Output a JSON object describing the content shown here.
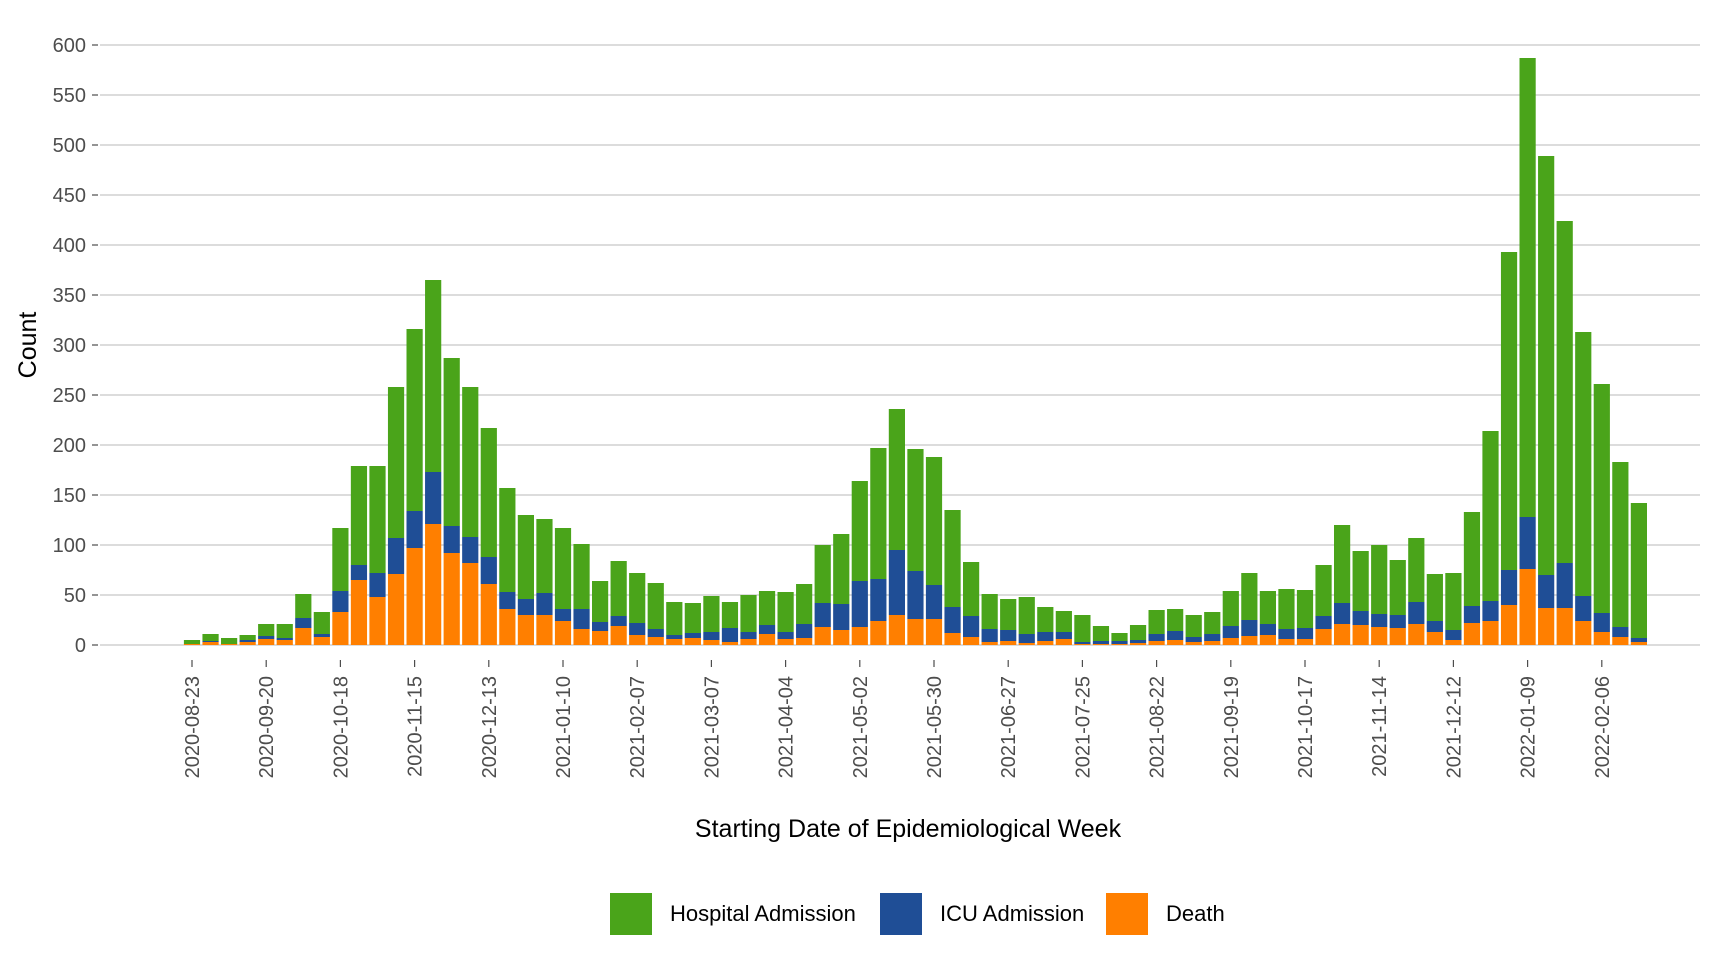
{
  "chart_data": {
    "type": "bar",
    "stacked": true,
    "xlabel": "Starting Date of Epidemiological Week",
    "ylabel": "Count",
    "ylim": [
      0,
      600
    ],
    "yticks": [
      0,
      50,
      100,
      150,
      200,
      250,
      300,
      350,
      400,
      450,
      500,
      550,
      600
    ],
    "grid": "horizontal",
    "legend_position": "bottom",
    "x": [
      "2020-08-23",
      "2020-08-30",
      "2020-09-06",
      "2020-09-13",
      "2020-09-20",
      "2020-09-27",
      "2020-10-04",
      "2020-10-11",
      "2020-10-18",
      "2020-10-25",
      "2020-11-01",
      "2020-11-08",
      "2020-11-15",
      "2020-11-22",
      "2020-11-29",
      "2020-12-06",
      "2020-12-13",
      "2020-12-20",
      "2020-12-27",
      "2021-01-03",
      "2021-01-10",
      "2021-01-17",
      "2021-01-24",
      "2021-01-31",
      "2021-02-07",
      "2021-02-14",
      "2021-02-21",
      "2021-02-28",
      "2021-03-07",
      "2021-03-14",
      "2021-03-21",
      "2021-03-28",
      "2021-04-04",
      "2021-04-11",
      "2021-04-18",
      "2021-04-25",
      "2021-05-02",
      "2021-05-09",
      "2021-05-16",
      "2021-05-23",
      "2021-05-30",
      "2021-06-06",
      "2021-06-13",
      "2021-06-20",
      "2021-06-27",
      "2021-07-04",
      "2021-07-11",
      "2021-07-18",
      "2021-07-25",
      "2021-08-01",
      "2021-08-08",
      "2021-08-15",
      "2021-08-22",
      "2021-08-29",
      "2021-09-05",
      "2021-09-12",
      "2021-09-19",
      "2021-09-26",
      "2021-10-03",
      "2021-10-10",
      "2021-10-17",
      "2021-10-24",
      "2021-10-31",
      "2021-11-07",
      "2021-11-14",
      "2021-11-21",
      "2021-11-28",
      "2021-12-05",
      "2021-12-12",
      "2021-12-19",
      "2021-12-26",
      "2022-01-02",
      "2022-01-09",
      "2022-01-16",
      "2022-01-23",
      "2022-01-30",
      "2022-02-06",
      "2022-02-13",
      "2022-02-20"
    ],
    "xtick_labels": [
      "2020-08-23",
      "2020-09-20",
      "2020-10-18",
      "2020-11-15",
      "2020-12-13",
      "2021-01-10",
      "2021-02-07",
      "2021-03-07",
      "2021-04-04",
      "2021-05-02",
      "2021-05-30",
      "2021-06-27",
      "2021-07-25",
      "2021-08-22",
      "2021-09-19",
      "2021-10-17",
      "2021-11-14",
      "2021-12-12",
      "2022-01-09",
      "2022-02-06"
    ],
    "series": [
      {
        "name": "Death",
        "color": "#FF7F00",
        "values": [
          1,
          3,
          1,
          3,
          6,
          5,
          17,
          8,
          33,
          65,
          48,
          71,
          97,
          121,
          92,
          82,
          61,
          36,
          30,
          30,
          24,
          16,
          14,
          19,
          10,
          8,
          6,
          7,
          5,
          3,
          6,
          11,
          6,
          7,
          18,
          15,
          18,
          24,
          30,
          26,
          26,
          12,
          8,
          3,
          4,
          2,
          4,
          6,
          1,
          1,
          1,
          2,
          4,
          5,
          3,
          4,
          7,
          9,
          10,
          6,
          6,
          16,
          21,
          20,
          18,
          17,
          21,
          13,
          5,
          22,
          24,
          40,
          76,
          37,
          37,
          24,
          13,
          8,
          3
        ]
      },
      {
        "name": "ICU Admission",
        "color": "#1F4E96",
        "values": [
          0,
          1,
          0,
          2,
          3,
          2,
          10,
          3,
          21,
          15,
          24,
          36,
          37,
          52,
          27,
          26,
          27,
          17,
          16,
          22,
          12,
          20,
          9,
          10,
          12,
          8,
          4,
          5,
          8,
          14,
          7,
          9,
          7,
          14,
          24,
          26,
          46,
          42,
          65,
          48,
          34,
          26,
          21,
          13,
          11,
          9,
          9,
          7,
          2,
          3,
          3,
          3,
          7,
          9,
          5,
          7,
          12,
          16,
          11,
          10,
          11,
          13,
          21,
          14,
          13,
          13,
          22,
          11,
          10,
          17,
          20,
          35,
          52,
          33,
          45,
          25,
          19,
          10,
          4
        ]
      },
      {
        "name": "Hospital Admission",
        "color": "#4AA41A",
        "values": [
          4,
          7,
          6,
          5,
          12,
          14,
          24,
          22,
          63,
          99,
          107,
          151,
          182,
          192,
          168,
          150,
          129,
          104,
          84,
          74,
          81,
          65,
          41,
          55,
          50,
          46,
          33,
          30,
          36,
          26,
          37,
          34,
          40,
          40,
          58,
          70,
          100,
          131,
          141,
          122,
          128,
          97,
          54,
          35,
          31,
          37,
          25,
          21,
          27,
          15,
          8,
          15,
          24,
          22,
          22,
          22,
          35,
          47,
          33,
          40,
          38,
          51,
          78,
          60,
          69,
          55,
          64,
          47,
          57,
          94,
          170,
          318,
          459,
          419,
          342,
          264,
          229,
          165,
          135
        ]
      }
    ],
    "legend_order": [
      "Hospital Admission",
      "ICU Admission",
      "Death"
    ]
  }
}
